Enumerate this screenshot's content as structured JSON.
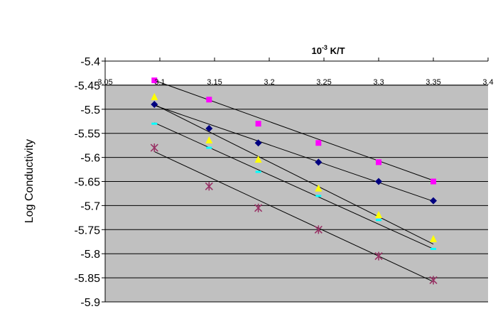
{
  "chart_data": {
    "type": "scatter",
    "title": "",
    "xlabel": {
      "prefix": "10",
      "superscript": "-3",
      "suffix": " K/T"
    },
    "ylabel": "Log  Conductivity",
    "xlim": [
      3.05,
      3.4
    ],
    "ylim": [
      -5.9,
      -5.4
    ],
    "x_ticks": [
      "3.05",
      "3.1",
      "3.15",
      "3.2",
      "3.25",
      "3.3",
      "3.35",
      "3.4"
    ],
    "y_ticks": [
      "-5.4",
      "-5.45",
      "-5.5",
      "-5.55",
      "-5.6",
      "-5.65",
      "-5.7",
      "-5.75",
      "-5.8",
      "-5.85",
      "-5.9"
    ],
    "x_axis_position": "top",
    "grid": "horizontal",
    "plot_background": "#c0c0c0",
    "legend": "none",
    "series": [
      {
        "marker": "square",
        "color": "#ff00ff",
        "x": [
          3.095,
          3.145,
          3.19,
          3.245,
          3.3,
          3.35
        ],
        "y": [
          -5.44,
          -5.48,
          -5.53,
          -5.57,
          -5.61,
          -5.65
        ],
        "fit": [
          [
            3.095,
            -5.44
          ],
          [
            3.35,
            -5.648
          ]
        ]
      },
      {
        "marker": "diamond",
        "color": "#000080",
        "x": [
          3.095,
          3.145,
          3.19,
          3.245,
          3.3,
          3.35
        ],
        "y": [
          -5.49,
          -5.54,
          -5.57,
          -5.61,
          -5.65,
          -5.69
        ],
        "fit": [
          [
            3.095,
            -5.492
          ],
          [
            3.35,
            -5.691
          ]
        ]
      },
      {
        "marker": "triangle",
        "color": "#ffff00",
        "x": [
          3.095,
          3.145,
          3.19,
          3.245,
          3.3,
          3.35
        ],
        "y": [
          -5.475,
          -5.565,
          -5.605,
          -5.665,
          -5.72,
          -5.77
        ],
        "fit": [
          [
            3.095,
            -5.49
          ],
          [
            3.35,
            -5.78
          ]
        ]
      },
      {
        "marker": "dash",
        "color": "#00ffff",
        "x": [
          3.095,
          3.145,
          3.19,
          3.245,
          3.3,
          3.35
        ],
        "y": [
          -5.53,
          -5.58,
          -5.63,
          -5.68,
          -5.73,
          -5.79
        ],
        "fit": [
          [
            3.095,
            -5.528
          ],
          [
            3.35,
            -5.79
          ]
        ]
      },
      {
        "marker": "star",
        "color": "#993366",
        "x": [
          3.095,
          3.145,
          3.19,
          3.245,
          3.3,
          3.35
        ],
        "y": [
          -5.58,
          -5.66,
          -5.705,
          -5.75,
          -5.805,
          -5.855
        ],
        "fit": [
          [
            3.095,
            -5.588
          ],
          [
            3.35,
            -5.858
          ]
        ]
      }
    ]
  }
}
